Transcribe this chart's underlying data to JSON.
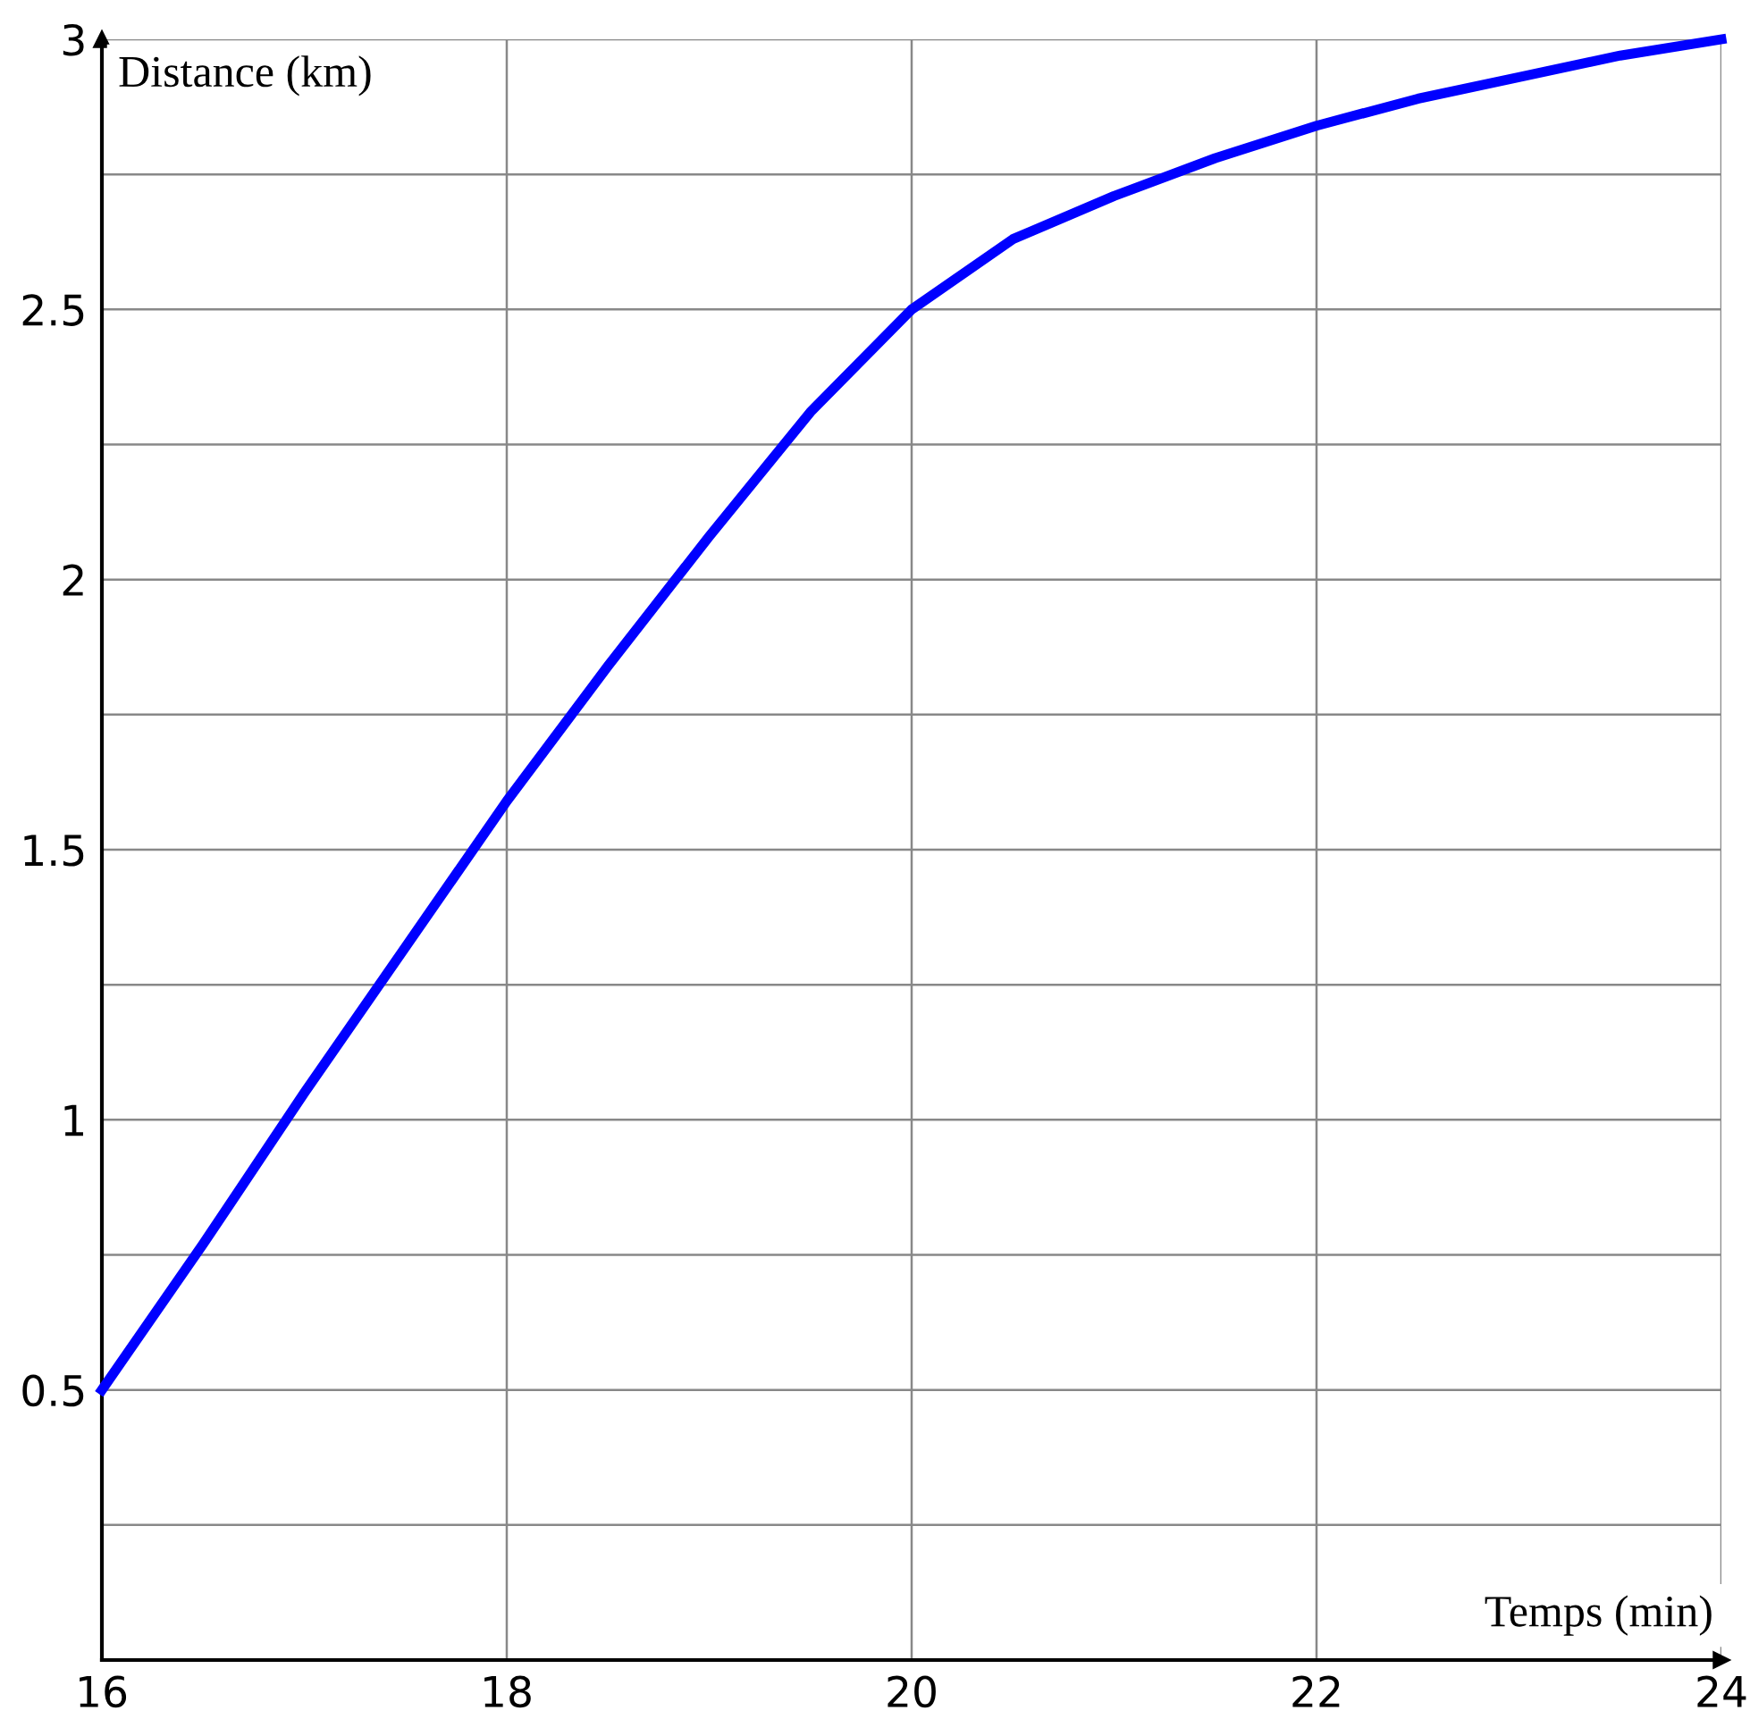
{
  "chart_data": {
    "type": "line",
    "xlabel": "Temps (min)",
    "ylabel": "Distance (km)",
    "x": [
      16,
      16.5,
      17,
      17.5,
      18,
      18.5,
      19,
      19.5,
      20,
      20.5,
      21,
      21.5,
      22,
      22.5,
      23,
      23.5,
      24
    ],
    "series": [
      {
        "color": "#0000ff",
        "values": [
          0.5,
          0.77,
          1.05,
          1.32,
          1.59,
          1.84,
          2.08,
          2.31,
          2.5,
          2.63,
          2.71,
          2.78,
          2.84,
          2.89,
          2.93,
          2.97,
          3.0
        ]
      }
    ],
    "xlim": [
      16,
      24
    ],
    "xticks": [
      16,
      18,
      20,
      22,
      24
    ],
    "ylim": [
      0,
      3
    ],
    "yticks": [
      {
        "value": 0.25,
        "label": null
      },
      0.5,
      {
        "value": 0.75,
        "label": null
      },
      1,
      {
        "value": 1.25,
        "label": null
      },
      1.5,
      {
        "value": 1.75,
        "label": null
      },
      2,
      {
        "value": 2.25,
        "label": null
      },
      2.5,
      {
        "value": 2.75,
        "label": null
      },
      3
    ],
    "grid": true,
    "line_style": "solid",
    "marker": "none"
  }
}
